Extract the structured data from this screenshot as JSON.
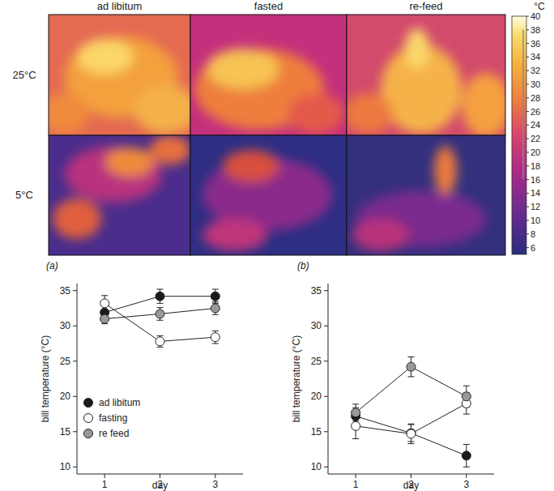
{
  "images": {
    "columns": [
      "ad libitum",
      "fasted",
      "re-feed"
    ],
    "rows": [
      "25°C",
      "5°C"
    ],
    "colorbar": {
      "label": "°C",
      "range": [
        5,
        40
      ],
      "ticks": [
        6,
        8,
        10,
        12,
        14,
        16,
        18,
        20,
        22,
        24,
        26,
        28,
        30,
        32,
        34,
        36,
        38,
        40
      ]
    }
  },
  "chart_data": [
    {
      "type": "line",
      "title": "(a)",
      "x_label": "day",
      "y_label": "bill temperature (°C)",
      "x": [
        1,
        2,
        3
      ],
      "xlim": [
        0.5,
        3.5
      ],
      "xticks": [
        1,
        2,
        3
      ],
      "ylim": [
        9,
        36
      ],
      "yticks": [
        10,
        15,
        20,
        25,
        30,
        35
      ],
      "legend": "lower left",
      "series": [
        {
          "name": "ad libitum",
          "color": "#1a1a1a",
          "marker": "circle",
          "values": [
            31.9,
            34.2,
            34.2
          ],
          "errors": [
            0.9,
            1.0,
            1.0
          ]
        },
        {
          "name": "fasting",
          "color": "#ffffff",
          "marker": "circle",
          "values": [
            33.2,
            27.8,
            28.4
          ],
          "errors": [
            1.1,
            0.8,
            0.9
          ]
        },
        {
          "name": "re feed",
          "color": "#999999",
          "marker": "circle",
          "values": [
            31.0,
            31.7,
            32.5
          ],
          "errors": [
            0.7,
            0.9,
            0.9
          ]
        }
      ]
    },
    {
      "type": "line",
      "title": "(b)",
      "x_label": "day",
      "y_label": "bill temperature (°C)",
      "x": [
        1,
        2,
        3
      ],
      "xlim": [
        0.5,
        3.5
      ],
      "xticks": [
        1,
        2,
        3
      ],
      "ylim": [
        9,
        36
      ],
      "yticks": [
        10,
        15,
        20,
        25,
        30,
        35
      ],
      "series": [
        {
          "name": "ad libitum",
          "color": "#1a1a1a",
          "marker": "circle",
          "values": [
            17.2,
            14.8,
            11.6
          ],
          "errors": [
            1.2,
            1.2,
            1.6
          ]
        },
        {
          "name": "fasting",
          "color": "#ffffff",
          "marker": "circle",
          "values": [
            15.8,
            14.7,
            19.0
          ],
          "errors": [
            1.8,
            1.4,
            1.5
          ]
        },
        {
          "name": "re feed",
          "color": "#999999",
          "marker": "circle",
          "values": [
            17.7,
            24.2,
            20.0
          ],
          "errors": [
            1.2,
            1.4,
            1.5
          ]
        }
      ]
    }
  ]
}
